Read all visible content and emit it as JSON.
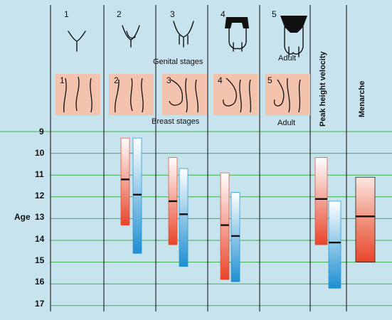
{
  "genital_stages": {
    "numbers": [
      "1",
      "2",
      "3",
      "4",
      "5"
    ],
    "caption": "Genital stages",
    "adult_label": "Adult"
  },
  "breast_stages": {
    "numbers": [
      "1",
      "2",
      "3",
      "4",
      "5"
    ],
    "caption": "Breast stages",
    "adult_label": "Adult"
  },
  "columns": {
    "peak_height_velocity": "Peak height velocity",
    "menarche": "Menarche"
  },
  "age_axis": {
    "label": "Age",
    "ticks": [
      9,
      10,
      11,
      12,
      13,
      14,
      15,
      16,
      17
    ]
  },
  "colors": {
    "background": "#c6e3ee",
    "grid": "#3cb34a",
    "female": "#e8452a",
    "male": "#1f8fd0",
    "skin": "#f4c3ad"
  },
  "chart_data": {
    "type": "range",
    "x": [
      "Genital/Breast stage 2",
      "Genital/Breast stage 3",
      "Genital/Breast stage 4",
      "Peak height velocity",
      "Menarche"
    ],
    "ylabel": "Age",
    "ylim": [
      9,
      17
    ],
    "series": [
      {
        "values": [
          {
            "category": "Genital/Breast stage 2",
            "start": 9.3,
            "mean": 11.2,
            "end": 13.3
          },
          {
            "category": "Genital/Breast stage 3",
            "start": 10.2,
            "mean": 12.2,
            "end": 14.2
          },
          {
            "category": "Genital/Breast stage 4",
            "start": 10.9,
            "mean": 13.3,
            "end": 15.8
          },
          {
            "category": "Peak height velocity",
            "start": 10.2,
            "mean": 12.1,
            "end": 14.2
          },
          {
            "category": "Menarche",
            "start": 11.1,
            "mean": 12.9,
            "end": 15.0
          }
        ]
      },
      {
        "values": [
          {
            "category": "Genital/Breast stage 2",
            "start": 9.3,
            "mean": 11.9,
            "end": 14.6
          },
          {
            "category": "Genital/Breast stage 3",
            "start": 10.7,
            "mean": 12.8,
            "end": 15.2
          },
          {
            "category": "Genital/Breast stage 4",
            "start": 11.8,
            "mean": 13.8,
            "end": 15.9
          },
          {
            "category": "Peak height velocity",
            "start": 12.2,
            "mean": 14.1,
            "end": 16.2
          }
        ]
      }
    ]
  }
}
